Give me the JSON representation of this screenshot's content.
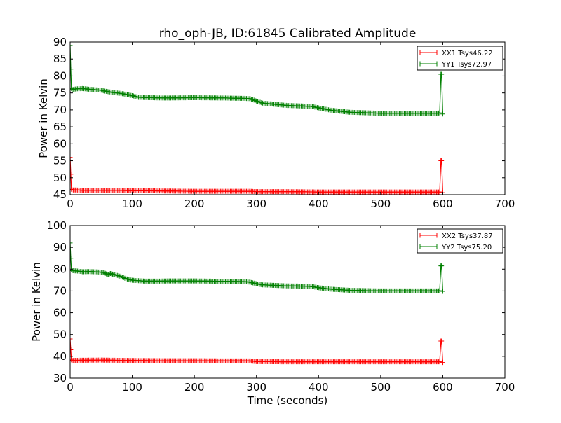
{
  "figure": {
    "title": "rho_oph-JB, ID:61845 Calibrated Amplitude"
  },
  "chart_data": [
    {
      "type": "line",
      "title": "rho_oph-JB, ID:61845 Calibrated Amplitude",
      "xlabel": "",
      "ylabel": "Power in Kelvin",
      "xlim": [
        0,
        700
      ],
      "ylim": [
        45,
        90
      ],
      "x_ticks": [
        0,
        100,
        200,
        300,
        400,
        500,
        600,
        700
      ],
      "y_ticks": [
        45,
        50,
        55,
        60,
        65,
        70,
        75,
        80,
        85,
        90
      ],
      "grid": false,
      "legend_position": "top-right",
      "series": [
        {
          "name": "XX1 Tsys46.22",
          "color": "#ff0000",
          "marker": "+",
          "x": [
            0,
            1,
            2,
            3,
            5,
            10,
            20,
            50,
            100,
            150,
            200,
            250,
            290,
            300,
            350,
            400,
            450,
            500,
            550,
            590,
            595,
            597,
            598,
            600
          ],
          "y": [
            56,
            51,
            46.6,
            46.5,
            46.4,
            46.4,
            46.3,
            46.3,
            46.2,
            46.1,
            46.0,
            46.0,
            46.0,
            45.9,
            45.9,
            45.8,
            45.8,
            45.8,
            45.8,
            45.8,
            45.8,
            55.0,
            55.0,
            45.6
          ]
        },
        {
          "name": "YY1 Tsys72.97",
          "color": "#008000",
          "marker": "+",
          "x": [
            0,
            1,
            2,
            3,
            10,
            20,
            30,
            50,
            60,
            70,
            80,
            90,
            100,
            110,
            130,
            150,
            200,
            250,
            280,
            290,
            300,
            310,
            350,
            380,
            390,
            400,
            420,
            450,
            500,
            550,
            590,
            595,
            597,
            598,
            600
          ],
          "y": [
            89,
            82,
            76.3,
            76.0,
            76.2,
            76.3,
            76.1,
            75.8,
            75.4,
            75.1,
            74.9,
            74.6,
            74.2,
            73.7,
            73.6,
            73.5,
            73.6,
            73.5,
            73.4,
            73.3,
            72.6,
            72.0,
            71.3,
            71.1,
            71.0,
            70.6,
            69.9,
            69.3,
            69.0,
            69.0,
            69.0,
            69.1,
            80.5,
            80.5,
            68.8
          ]
        }
      ]
    },
    {
      "type": "line",
      "title": "",
      "xlabel": "Time (seconds)",
      "ylabel": "Power in Kelvin",
      "xlim": [
        0,
        700
      ],
      "ylim": [
        30,
        100
      ],
      "x_ticks": [
        0,
        100,
        200,
        300,
        400,
        500,
        600,
        700
      ],
      "y_ticks": [
        30,
        40,
        50,
        60,
        70,
        80,
        90,
        100
      ],
      "grid": false,
      "legend_position": "top-right",
      "series": [
        {
          "name": "XX2 Tsys37.87",
          "color": "#ff0000",
          "marker": "+",
          "x": [
            0,
            1,
            2,
            3,
            10,
            50,
            100,
            150,
            200,
            250,
            290,
            300,
            350,
            400,
            450,
            500,
            550,
            590,
            595,
            597,
            598,
            600
          ],
          "y": [
            48,
            43,
            38.4,
            38.2,
            38.2,
            38.3,
            38.1,
            38.0,
            38.0,
            37.9,
            37.9,
            37.6,
            37.5,
            37.5,
            37.5,
            37.5,
            37.5,
            37.5,
            37.5,
            47.0,
            47.0,
            37.2
          ]
        },
        {
          "name": "YY2 Tsys75.20",
          "color": "#008000",
          "marker": "+",
          "x": [
            0,
            1,
            2,
            3,
            10,
            20,
            30,
            40,
            50,
            55,
            60,
            65,
            70,
            80,
            90,
            100,
            120,
            140,
            160,
            200,
            250,
            280,
            290,
            300,
            310,
            350,
            380,
            390,
            400,
            420,
            450,
            500,
            550,
            590,
            595,
            597,
            598,
            600
          ],
          "y": [
            92,
            85,
            79.6,
            79.3,
            79.2,
            78.8,
            78.9,
            78.8,
            78.6,
            78.4,
            77.5,
            78.0,
            77.6,
            76.8,
            75.6,
            74.9,
            74.5,
            74.5,
            74.6,
            74.6,
            74.4,
            74.3,
            74.0,
            73.3,
            72.8,
            72.3,
            72.2,
            72.0,
            71.5,
            70.8,
            70.3,
            70.0,
            70.0,
            70.0,
            70.1,
            81.5,
            81.5,
            69.8
          ]
        }
      ]
    }
  ]
}
